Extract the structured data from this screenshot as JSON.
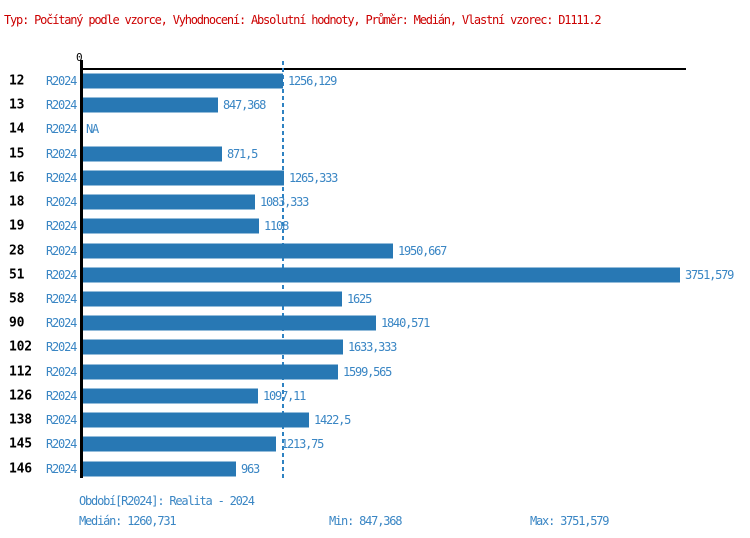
{
  "title": "Typ: Počítaný podle vzorce, Vyhodnocení: Absolutní hodnoty, Průměr: Medián, Vlastní vzorec: D1111.2",
  "colors": {
    "title_red": "#cc0000",
    "bar_blue": "#2878b4",
    "text_blue": "#3a86c4",
    "median_line_blue": "#2e82c2",
    "axis_black": "#000000"
  },
  "chart_data": {
    "type": "bar",
    "orientation": "horizontal",
    "title": "Typ: Počítaný podle vzorce, Vyhodnocení: Absolutní hodnoty, Průměr: Medián, Vlastní vzorec: D1111.2",
    "axis_zero_label": "0",
    "series_label": "R2024",
    "categories": [
      "12",
      "13",
      "14",
      "15",
      "16",
      "18",
      "19",
      "28",
      "51",
      "58",
      "90",
      "102",
      "112",
      "126",
      "138",
      "145",
      "146"
    ],
    "values": [
      1256.129,
      847.368,
      null,
      871.5,
      1265.333,
      1083.333,
      1108,
      1950.667,
      3751.579,
      1625,
      1840.571,
      1633.333,
      1599.565,
      1097.11,
      1422.5,
      1213.75,
      963
    ],
    "value_labels": [
      "1256,129",
      "847,368",
      "NA",
      "871,5",
      "1265,333",
      "1083,333",
      "1108",
      "1950,667",
      "3751,579",
      "1625",
      "1840,571",
      "1633,333",
      "1599,565",
      "1097,11",
      "1422,5",
      "1213,75",
      "963"
    ],
    "xlim": [
      0,
      3751.579
    ],
    "median": 1260.731,
    "grid": false,
    "legend": false
  },
  "footer": {
    "period": "Období[R2024]: Realita - 2024",
    "median": "Medián: 1260,731",
    "min": "Min: 847,368",
    "max": "Max: 3751,579"
  }
}
